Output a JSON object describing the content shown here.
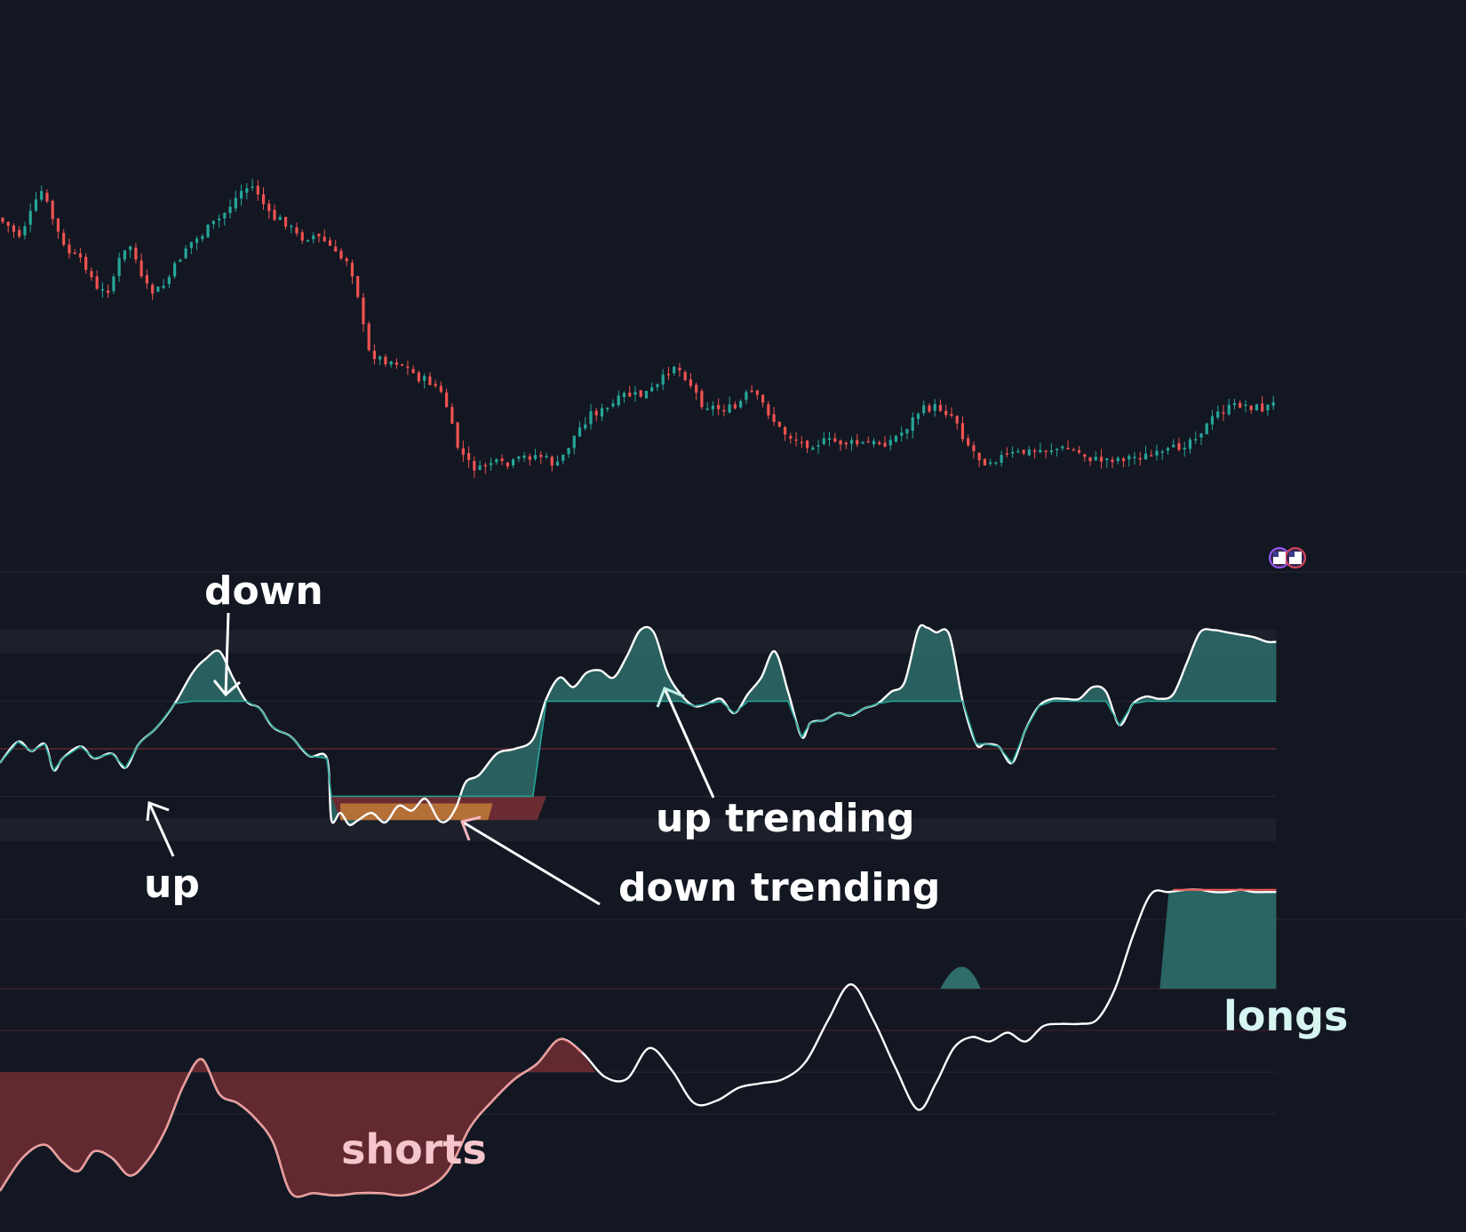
{
  "colors": {
    "background": "#131722",
    "up": "#26a69a",
    "down": "#ef5350",
    "teal_fill": "#2e6d6a",
    "red_fill": "#6b2b32",
    "orange_fill": "#c8823a",
    "osc_line": "#ffffff",
    "annotation": "#ffffff",
    "shorts_label": "#f5c6cb",
    "longs_label": "#d6f5f0",
    "separator": "#2a2e39"
  },
  "annotations": {
    "down": "down",
    "up": "up",
    "up_trending": "up trending",
    "down_trending": "down trending",
    "shorts": "shorts",
    "longs": "longs"
  },
  "badge": {
    "icon": "us-flag-icon"
  },
  "chart_data": [
    {
      "type": "candlestick",
      "panel": "price",
      "bars": 230,
      "close_path": [
        [
          0,
          245
        ],
        [
          10,
          265
        ],
        [
          20,
          215
        ],
        [
          30,
          280
        ],
        [
          40,
          300
        ],
        [
          45,
          330
        ],
        [
          50,
          325
        ],
        [
          55,
          290
        ],
        [
          60,
          275
        ],
        [
          65,
          320
        ],
        [
          70,
          330
        ],
        [
          75,
          320
        ],
        [
          85,
          275
        ],
        [
          90,
          268
        ],
        [
          95,
          255
        ],
        [
          100,
          245
        ],
        [
          105,
          228
        ],
        [
          110,
          212
        ],
        [
          115,
          210
        ],
        [
          118,
          225
        ],
        [
          122,
          245
        ],
        [
          128,
          248
        ],
        [
          135,
          268
        ],
        [
          142,
          265
        ],
        [
          148,
          275
        ],
        [
          152,
          290
        ],
        [
          157,
          292
        ],
        [
          162,
          340
        ],
        [
          165,
          395
        ],
        [
          172,
          405
        ],
        [
          180,
          408
        ],
        [
          188,
          425
        ],
        [
          195,
          432
        ],
        [
          200,
          450
        ],
        [
          205,
          500
        ],
        [
          210,
          520
        ],
        [
          215,
          530
        ],
        [
          220,
          520
        ],
        [
          228,
          525
        ],
        [
          235,
          515
        ],
        [
          242,
          512
        ],
        [
          250,
          525
        ],
        [
          258,
          490
        ],
        [
          265,
          465
        ],
        [
          272,
          462
        ],
        [
          280,
          445
        ],
        [
          288,
          445
        ],
        [
          295,
          435
        ],
        [
          302,
          410
        ],
        [
          308,
          425
        ],
        [
          315,
          455
        ],
        [
          322,
          460
        ],
        [
          330,
          460
        ],
        [
          336,
          440
        ],
        [
          342,
          455
        ],
        [
          350,
          485
        ],
        [
          360,
          500
        ],
        [
          372,
          497
        ],
        [
          385,
          500
        ],
        [
          398,
          498
        ],
        [
          405,
          485
        ],
        [
          412,
          462
        ],
        [
          420,
          458
        ],
        [
          428,
          470
        ],
        [
          432,
          495
        ],
        [
          440,
          520
        ],
        [
          452,
          512
        ],
        [
          462,
          508
        ],
        [
          472,
          505
        ],
        [
          480,
          506
        ],
        [
          490,
          518
        ],
        [
          505,
          515
        ],
        [
          520,
          512
        ],
        [
          530,
          500
        ],
        [
          540,
          480
        ],
        [
          545,
          465
        ],
        [
          555,
          455
        ],
        [
          565,
          460
        ],
        [
          570,
          455
        ]
      ]
    },
    {
      "type": "area",
      "panel": "trend-oscillator",
      "zones": [
        "overbought",
        "upper",
        "mid",
        "lower",
        "oversold"
      ],
      "series": [
        {
          "name": "",
          "x": [
            0,
            8,
            14,
            20,
            24,
            28,
            36,
            42,
            50,
            56,
            62,
            70,
            78,
            86,
            92,
            98,
            104,
            110,
            116,
            122,
            130,
            138,
            146,
            148,
            152,
            156,
            160,
            166,
            172,
            178,
            184,
            190,
            196,
            200,
            204,
            208,
            214,
            222,
            230,
            238,
            244,
            250,
            256,
            262,
            268,
            274,
            280,
            286,
            292,
            298,
            304,
            310,
            316,
            322,
            328,
            334,
            340,
            346,
            352,
            358,
            362,
            368,
            374,
            380,
            386,
            392,
            398,
            404,
            410,
            414,
            418,
            424,
            430,
            436,
            440,
            446,
            452,
            458,
            464,
            470,
            476,
            482,
            488,
            494,
            500,
            506,
            512,
            518,
            524,
            530,
            536,
            542,
            548,
            554,
            560,
            566,
            570
          ],
          "y": [
            -0.3,
            0.15,
            -0.05,
            0.1,
            -0.45,
            -0.2,
            0.05,
            -0.2,
            -0.1,
            -0.4,
            0.1,
            0.45,
            0.95,
            1.6,
            1.9,
            2.05,
            1.5,
            1.0,
            0.85,
            0.45,
            0.25,
            -0.15,
            -0.2,
            -1.5,
            -1.35,
            -1.6,
            -1.5,
            -1.35,
            -1.55,
            -1.2,
            -1.3,
            -1.05,
            -1.5,
            -1.5,
            -1.2,
            -0.7,
            -0.55,
            -0.1,
            0.0,
            0.2,
            1.05,
            1.5,
            1.3,
            1.6,
            1.65,
            1.5,
            1.95,
            2.5,
            2.45,
            1.6,
            1.15,
            0.9,
            0.95,
            1.05,
            0.75,
            1.15,
            1.5,
            2.05,
            1.2,
            0.25,
            0.55,
            0.6,
            0.75,
            0.7,
            0.85,
            0.95,
            1.2,
            1.4,
            2.5,
            2.55,
            2.45,
            2.4,
            1.0,
            0.1,
            0.1,
            0.05,
            -0.3,
            0.4,
            0.9,
            1.05,
            1.05,
            1.05,
            1.3,
            1.2,
            0.5,
            0.95,
            1.1,
            1.05,
            1.15,
            1.8,
            2.45,
            2.5,
            2.45,
            2.4,
            2.35,
            2.25,
            2.25
          ]
        }
      ]
    },
    {
      "type": "area",
      "panel": "positioning-oscillator",
      "series": [
        {
          "name": "",
          "x": [
            0,
            10,
            20,
            28,
            35,
            42,
            50,
            58,
            66,
            74,
            82,
            90,
            98,
            106,
            114,
            122,
            130,
            140,
            150,
            160,
            170,
            180,
            190,
            200,
            210,
            220,
            230,
            240,
            250,
            260,
            270,
            280,
            290,
            300,
            310,
            320,
            330,
            340,
            350,
            360,
            370,
            380,
            390,
            400,
            410,
            418,
            426,
            434,
            442,
            450,
            458,
            466,
            474,
            482,
            490,
            498,
            506,
            514,
            522,
            530,
            536,
            542,
            548,
            554,
            560,
            566,
            570
          ],
          "y": [
            -2.4,
            -1.65,
            -1.35,
            -1.75,
            -1.95,
            -1.5,
            -1.65,
            -2.05,
            -1.7,
            -1.0,
            0.0,
            0.6,
            -0.2,
            -0.4,
            -0.75,
            -1.3,
            -2.45,
            -2.45,
            -2.5,
            -2.45,
            -2.45,
            -2.5,
            -2.35,
            -1.95,
            -0.95,
            -0.35,
            0.15,
            0.5,
            1.05,
            0.75,
            0.2,
            0.15,
            0.85,
            0.35,
            -0.4,
            -0.35,
            -0.05,
            0.05,
            0.15,
            0.55,
            1.5,
            2.3,
            1.5,
            0.4,
            -0.55,
            0.05,
            0.85,
            1.1,
            1.0,
            1.2,
            1.0,
            1.35,
            1.4,
            1.4,
            1.5,
            2.2,
            3.4,
            4.35,
            4.4,
            4.45,
            4.45,
            4.4,
            4.4,
            4.45,
            4.4,
            4.4,
            4.4
          ]
        }
      ]
    }
  ]
}
